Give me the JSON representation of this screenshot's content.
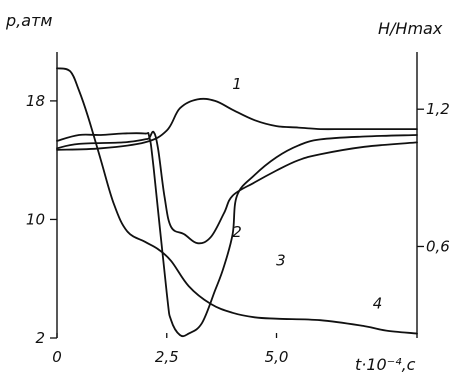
{
  "chart_data": {
    "type": "line",
    "left_axis": {
      "label": "p,атм",
      "ticks": [
        2,
        10,
        18
      ],
      "tick_labels": [
        "2",
        "10",
        "18"
      ],
      "ylim": [
        2,
        21.3
      ]
    },
    "right_axis": {
      "label": "H/Hmax",
      "ticks": [
        0.6,
        1.2
      ],
      "tick_labels": [
        "0,6",
        "1,2"
      ],
      "ylim": [
        0.2,
        1.45
      ]
    },
    "x_axis": {
      "label": "t·10⁻⁴,c",
      "ticks": [
        0,
        2.5,
        5.0
      ],
      "tick_labels": [
        "0",
        "2,5",
        "5,0"
      ],
      "xlim": [
        0,
        8.2
      ]
    },
    "grid": false,
    "series": [
      {
        "name": "1",
        "axis": "left",
        "x": [
          0,
          1.0,
          2.0,
          2.5,
          2.8,
          3.2,
          3.6,
          4.0,
          4.5,
          5.0,
          5.5,
          6.0,
          6.5,
          7.0,
          7.5,
          8.2
        ],
        "y": [
          14.7,
          14.8,
          15.2,
          16.0,
          17.5,
          18.1,
          18.0,
          17.4,
          16.7,
          16.3,
          16.2,
          16.1,
          16.1,
          16.1,
          16.1,
          16.1
        ]
      },
      {
        "name": "2",
        "axis": "left",
        "x": [
          0,
          0.5,
          1.5,
          2.0,
          2.1,
          2.2,
          2.3,
          2.45,
          2.6,
          2.9,
          3.2,
          3.5,
          3.8,
          4.0,
          4.5,
          5.0,
          5.5,
          6.0,
          7.0,
          8.2
        ],
        "y": [
          14.8,
          15.1,
          15.2,
          15.4,
          15.5,
          15.9,
          14.8,
          11.5,
          9.5,
          9.0,
          8.4,
          8.8,
          10.4,
          11.6,
          12.5,
          13.3,
          14.0,
          14.4,
          14.9,
          15.2
        ]
      },
      {
        "name": "3",
        "axis": "left",
        "x": [
          0,
          0.5,
          1.0,
          1.5,
          2.0,
          2.1,
          2.2,
          2.5,
          2.6,
          2.8,
          3.0,
          3.3,
          3.6,
          3.8,
          4.0,
          4.1,
          4.5,
          5.0,
          5.5,
          6.0,
          7.0,
          8.2
        ],
        "y": [
          15.3,
          15.7,
          15.7,
          15.8,
          15.8,
          15.6,
          13.5,
          5.0,
          3.2,
          2.2,
          2.3,
          3.0,
          5.2,
          6.8,
          9.0,
          11.6,
          13.0,
          14.2,
          15.0,
          15.4,
          15.6,
          15.7
        ]
      },
      {
        "name": "4",
        "axis": "left",
        "x": [
          0,
          0.3,
          0.5,
          0.7,
          1.0,
          1.3,
          1.6,
          2.0,
          2.3,
          2.6,
          3.0,
          3.5,
          4.0,
          4.5,
          5.0,
          6.0,
          7.0,
          7.5,
          8.2
        ],
        "y": [
          20.2,
          20.0,
          18.7,
          17.0,
          14.0,
          11.0,
          9.2,
          8.5,
          8.0,
          7.2,
          5.5,
          4.3,
          3.7,
          3.4,
          3.3,
          3.2,
          2.8,
          2.5,
          2.3
        ]
      }
    ],
    "curve_labels": [
      {
        "text": "1",
        "x": 4.1,
        "y": 18.8
      },
      {
        "text": "2",
        "x": 4.1,
        "y": 8.8
      },
      {
        "text": "3",
        "x": 5.1,
        "y": 6.9
      },
      {
        "text": "4",
        "x": 7.3,
        "y": 4.0
      }
    ]
  }
}
